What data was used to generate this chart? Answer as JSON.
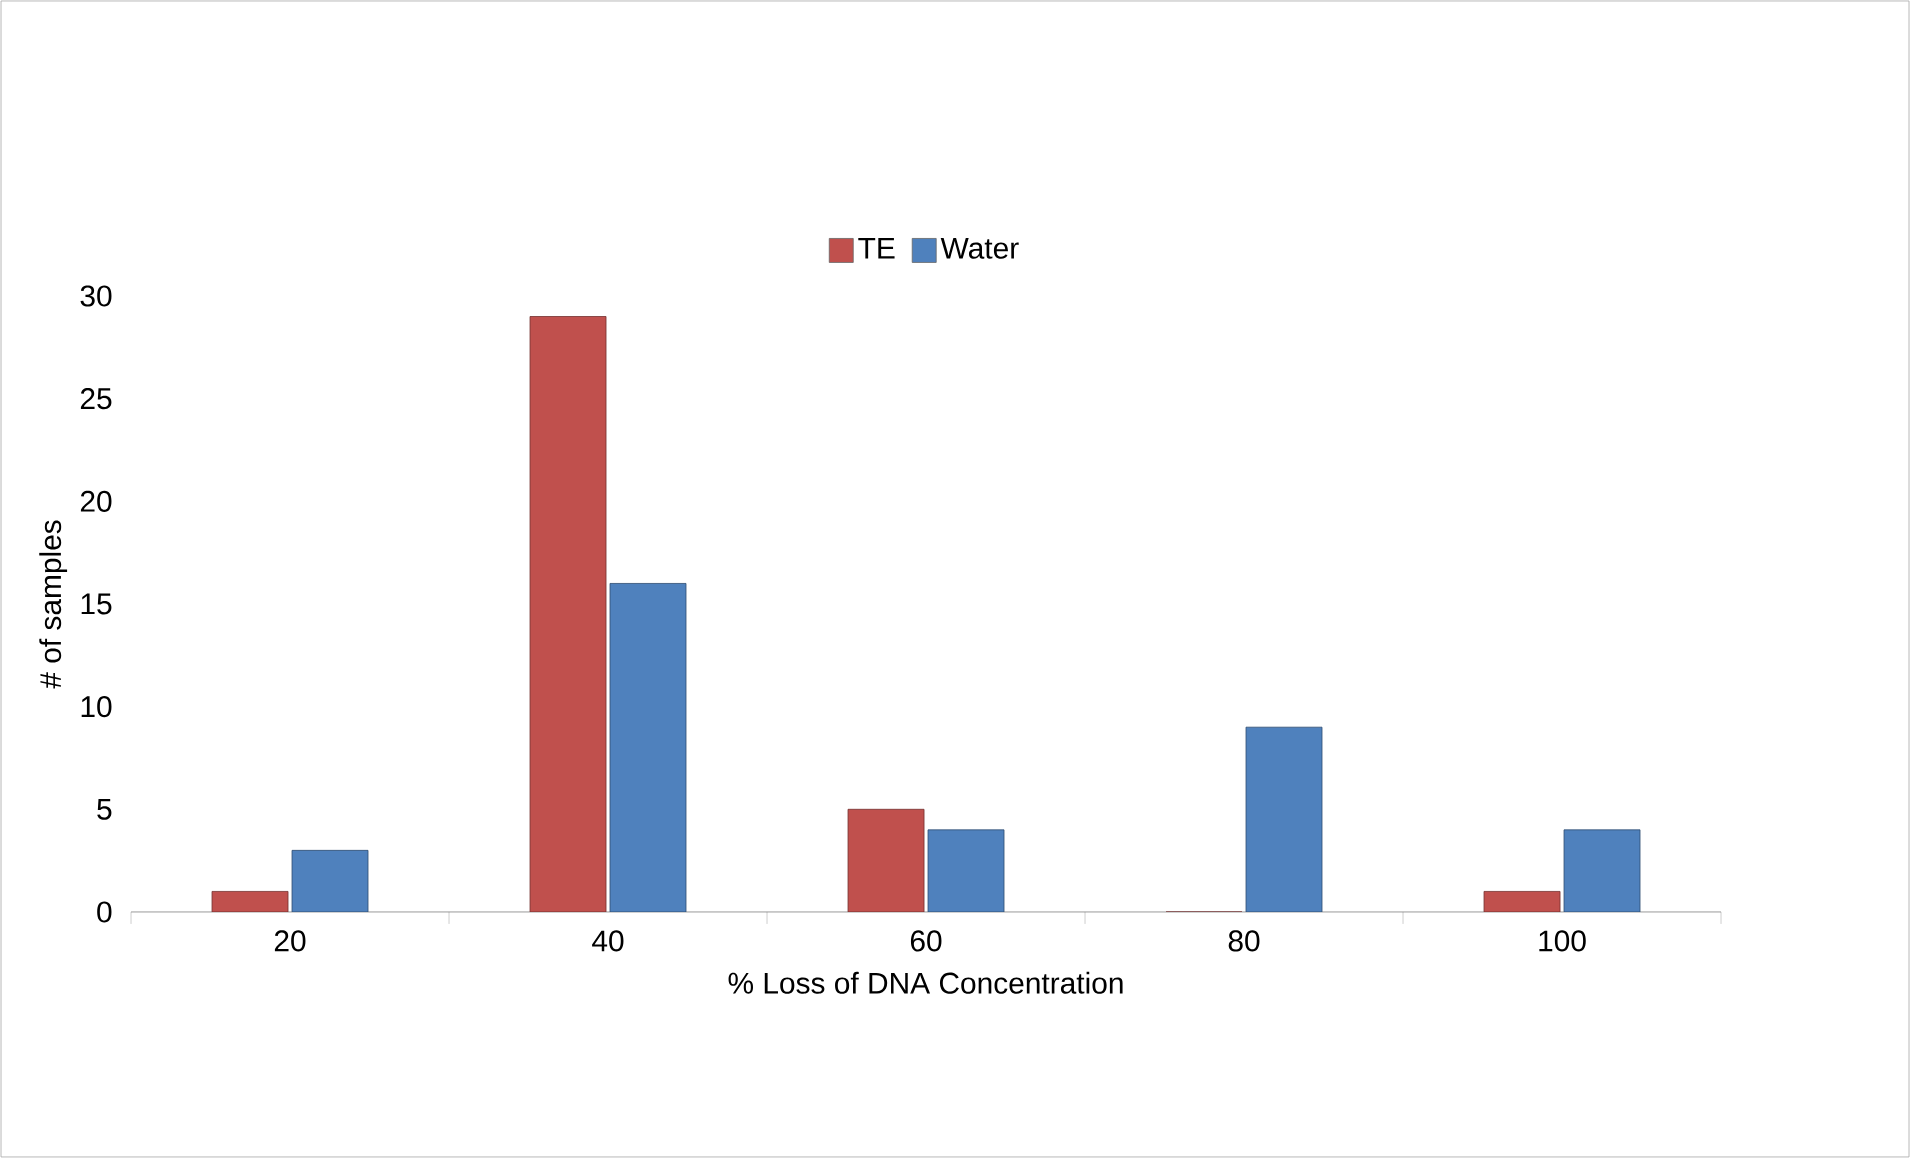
{
  "chart_data": {
    "type": "bar",
    "xlabel": "% Loss of DNA Concentration",
    "ylabel": "# of samples",
    "categories": [
      "20",
      "40",
      "60",
      "80",
      "100"
    ],
    "series": [
      {
        "name": "TE",
        "color": "#c0504d",
        "values": [
          1,
          29,
          5,
          0,
          1
        ]
      },
      {
        "name": "Water",
        "color": "#4f81bd",
        "values": [
          3,
          16,
          4,
          9,
          4
        ]
      }
    ],
    "ylim": [
      0,
      30
    ],
    "yticks": [
      0,
      5,
      10,
      15,
      20,
      25,
      30
    ],
    "grid": false,
    "legend": "top"
  }
}
